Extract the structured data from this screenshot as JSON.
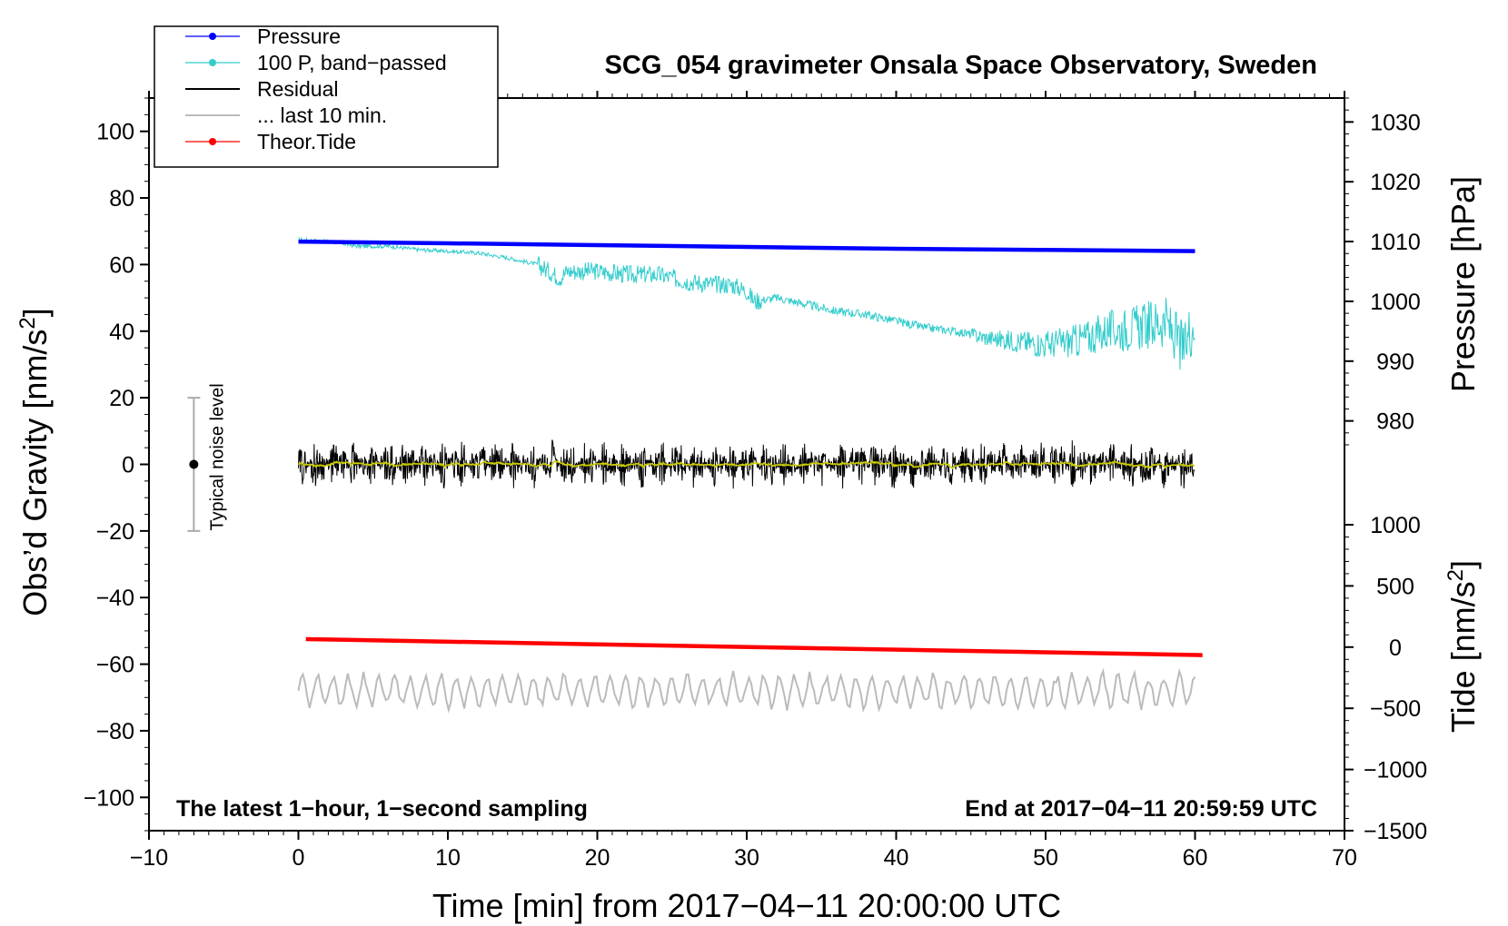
{
  "chart_data": {
    "type": "line",
    "title": "SCG_054 gravimeter Onsala Space Observatory, Sweden",
    "xlabel": "Time [min] from 2017−04−11 20:00:00 UTC",
    "ylabel_left": "Obs’d Gravity [nm/s",
    "ylabel_left_sup": "2",
    "ylabel_left_end": "]",
    "ylabel_right_pressure": "Pressure [hPa]",
    "ylabel_right_tide": "Tide [nm/s",
    "ylabel_right_tide_sup": "2",
    "ylabel_right_tide_end": "]",
    "xlim": [
      -10,
      70
    ],
    "ylim_left": [
      -110,
      110
    ],
    "pressure_range": [
      976,
      1034
    ],
    "tide_range": [
      -1500,
      1000
    ],
    "x_ticks": [
      {
        "v": -10,
        "label": "−10"
      },
      {
        "v": 0,
        "label": "0"
      },
      {
        "v": 10,
        "label": "10"
      },
      {
        "v": 20,
        "label": "20"
      },
      {
        "v": 30,
        "label": "30"
      },
      {
        "v": 40,
        "label": "40"
      },
      {
        "v": 50,
        "label": "50"
      },
      {
        "v": 60,
        "label": "60"
      },
      {
        "v": 70,
        "label": "70"
      }
    ],
    "y_ticks_left": [
      {
        "v": 100,
        "label": "100"
      },
      {
        "v": 80,
        "label": "80"
      },
      {
        "v": 60,
        "label": "60"
      },
      {
        "v": 40,
        "label": "40"
      },
      {
        "v": 20,
        "label": "20"
      },
      {
        "v": 0,
        "label": "0"
      },
      {
        "v": -20,
        "label": "−20"
      },
      {
        "v": -40,
        "label": "−40"
      },
      {
        "v": -60,
        "label": "−60"
      },
      {
        "v": -80,
        "label": "−80"
      },
      {
        "v": -100,
        "label": "−100"
      }
    ],
    "y_ticks_pressure": [
      {
        "v": 1030,
        "label": "1030"
      },
      {
        "v": 1020,
        "label": "1020"
      },
      {
        "v": 1010,
        "label": "1010"
      },
      {
        "v": 1000,
        "label": "1000"
      },
      {
        "v": 990,
        "label": "990"
      },
      {
        "v": 980,
        "label": "980"
      }
    ],
    "y_ticks_tide": [
      {
        "v": 1000,
        "label": "1000"
      },
      {
        "v": 500,
        "label": "500"
      },
      {
        "v": 0,
        "label": "0"
      },
      {
        "v": -500,
        "label": "−500"
      },
      {
        "v": -1000,
        "label": "−1000"
      },
      {
        "v": -1500,
        "label": "−1500"
      }
    ],
    "legend": [
      {
        "label": "Pressure",
        "color": "#0000ff",
        "marker": true
      },
      {
        "label": "100 P, band−passed",
        "color": "#33cccc",
        "marker": true
      },
      {
        "label": "Residual",
        "color": "#000000",
        "marker": false
      },
      {
        "label": "... last 10 min.",
        "color": "#bbbbbb",
        "marker": false
      },
      {
        "label": "Theor.Tide",
        "color": "#ff0000",
        "marker": true
      }
    ],
    "legend_position": "top-left",
    "series": [
      {
        "name": "Pressure",
        "color": "#0000ff",
        "axis": "pressure",
        "x": [
          0,
          10,
          20,
          30,
          40,
          50,
          60
        ],
        "y": [
          1010.0,
          1009.7,
          1009.4,
          1009.1,
          1008.8,
          1008.6,
          1008.4
        ]
      },
      {
        "name": "100 P, band−passed",
        "color": "#33cccc",
        "axis": "left",
        "x": [
          0,
          2,
          4,
          6,
          8,
          10,
          12,
          14,
          16,
          17.5,
          18,
          20,
          22,
          24,
          26,
          28,
          29,
          30,
          30.5,
          32,
          34,
          36,
          38,
          40,
          42,
          44,
          46,
          48,
          50,
          52,
          54,
          56,
          58,
          59.3,
          59.6,
          60
        ],
        "y": [
          67.5,
          67,
          65.5,
          65.5,
          64.5,
          64,
          63.5,
          62,
          60,
          56,
          58,
          58,
          57,
          57,
          55,
          54,
          54,
          52,
          49,
          50,
          48,
          46,
          45,
          43,
          41,
          40,
          38,
          37,
          36,
          37,
          40,
          41,
          43,
          34,
          40,
          43
        ]
      },
      {
        "name": "Residual",
        "color": "#000000",
        "axis": "left",
        "x": [
          0,
          60
        ],
        "y": [
          0,
          0
        ],
        "noise_amplitude": 8
      },
      {
        "name": "... last 10 min.",
        "color": "#bbbbbb",
        "axis": "left",
        "x": [
          0,
          60
        ],
        "y": [
          -68,
          -68
        ],
        "noise_amplitude": 6
      },
      {
        "name": "Theor.Tide",
        "color": "#ff0000",
        "axis": "tide",
        "x": [
          0.5,
          60.5
        ],
        "y": [
          65,
          -65
        ]
      }
    ],
    "noise_level": {
      "label": "Typical noise level",
      "x": -7,
      "y": 0,
      "err": 20
    },
    "annotation_left": "The latest 1−hour, 1−second sampling",
    "annotation_right": "End at 2017−04−11 20:59:59 UTC"
  }
}
